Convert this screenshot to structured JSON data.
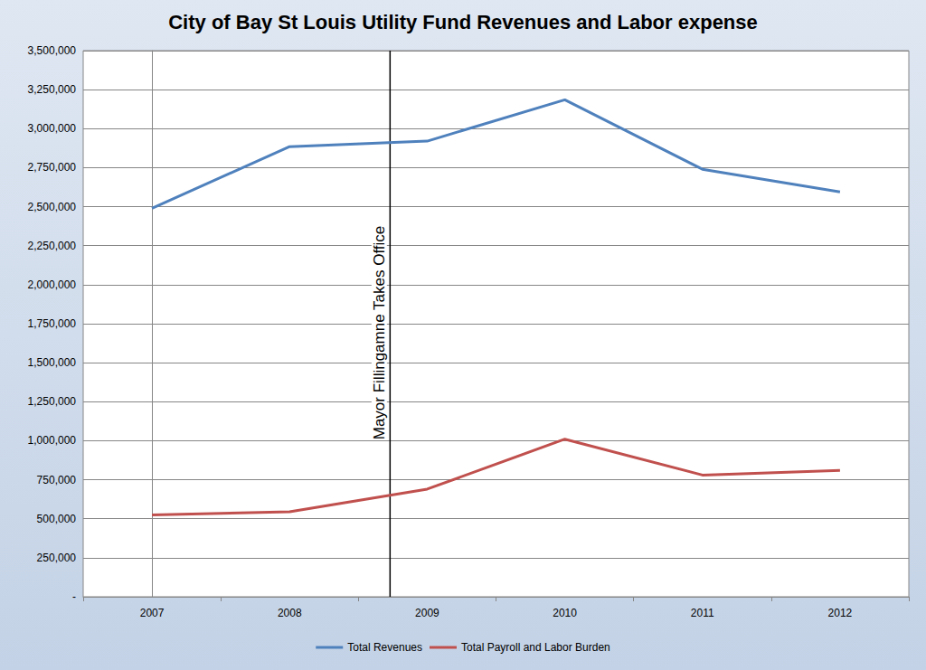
{
  "chart_data": {
    "type": "line",
    "title": "City of Bay St Louis Utility Fund Revenues and Labor expense",
    "categories": [
      "2007",
      "2008",
      "2009",
      "2010",
      "2011",
      "2012"
    ],
    "series": [
      {
        "name": "Total Revenues",
        "color": "#4f81bd",
        "values": [
          2490000,
          2885000,
          2920000,
          3185000,
          2740000,
          2595000
        ]
      },
      {
        "name": "Total Payroll and Labor Burden",
        "color": "#c0504d",
        "values": [
          525000,
          545000,
          690000,
          1010000,
          780000,
          810000
        ]
      }
    ],
    "ylim": [
      0,
      3500000
    ],
    "yticks": [
      {
        "value": 0,
        "label": "-"
      },
      {
        "value": 250000,
        "label": "250,000"
      },
      {
        "value": 500000,
        "label": "500,000"
      },
      {
        "value": 750000,
        "label": "750,000"
      },
      {
        "value": 1000000,
        "label": "1,000,000"
      },
      {
        "value": 1250000,
        "label": "1,250,000"
      },
      {
        "value": 1500000,
        "label": "1,500,000"
      },
      {
        "value": 1750000,
        "label": "1,750,000"
      },
      {
        "value": 2000000,
        "label": "2,000,000"
      },
      {
        "value": 2250000,
        "label": "2,250,000"
      },
      {
        "value": 2500000,
        "label": "2,500,000"
      },
      {
        "value": 2750000,
        "label": "2,750,000"
      },
      {
        "value": 3000000,
        "label": "3,000,000"
      },
      {
        "value": 3250000,
        "label": "3,250,000"
      },
      {
        "value": 3500000,
        "label": "3,500,000"
      }
    ],
    "grid": true,
    "legend": "bottom",
    "annotations": [
      {
        "text": "Mayor Fillingamne Takes Office",
        "x": 1.73
      }
    ]
  }
}
